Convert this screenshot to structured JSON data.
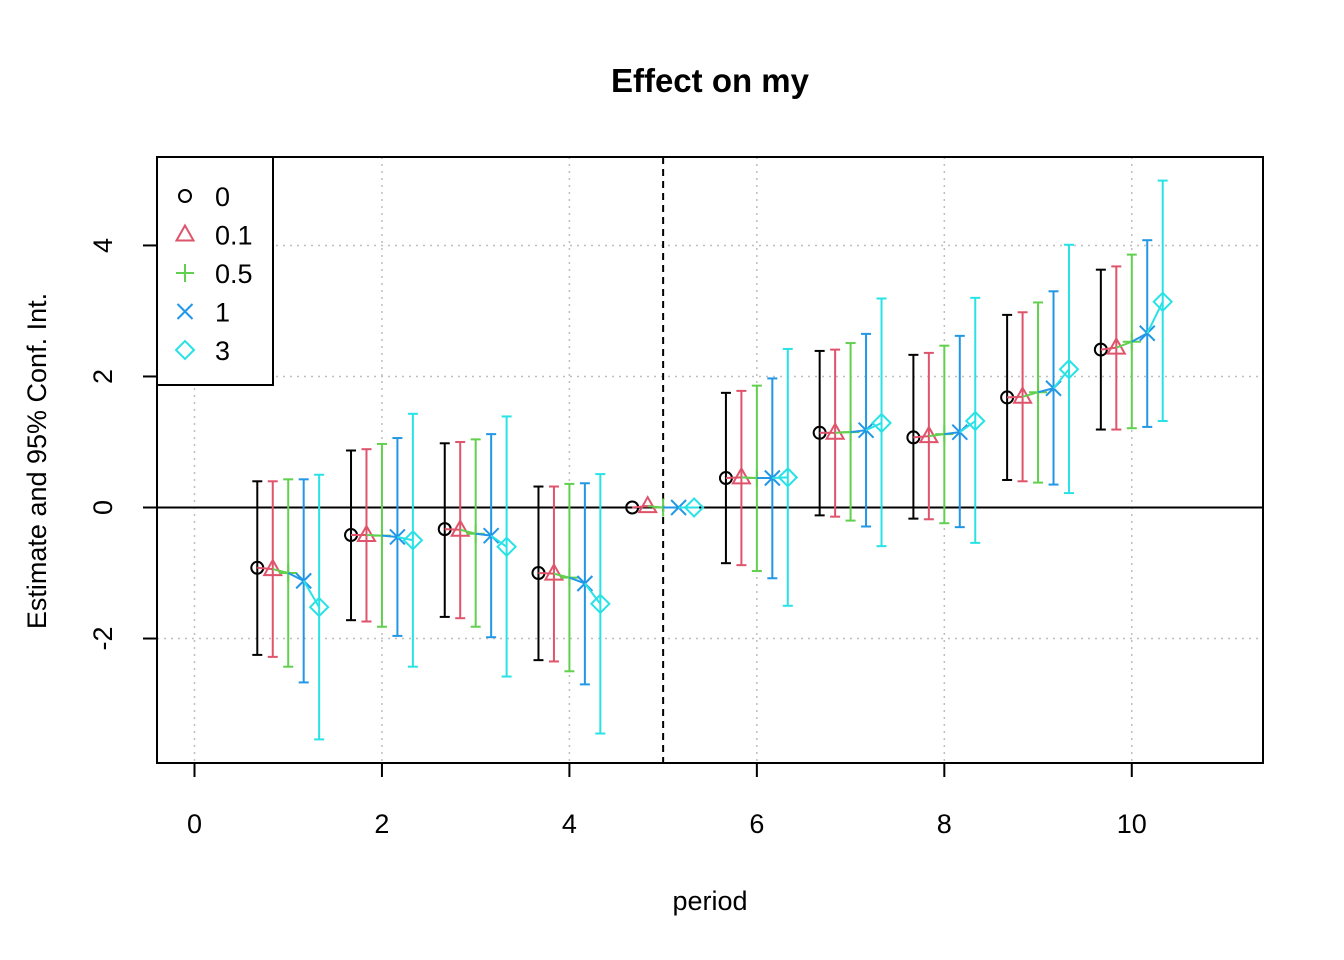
{
  "chart_data": {
    "type": "scatter",
    "title": "Effect on my",
    "xlabel": "period",
    "ylabel": "Estimate and 95% Conf. Int.",
    "xlim": [
      -0.4,
      11.4
    ],
    "ylim": [
      -3.9,
      5.35
    ],
    "x_ticks": [
      "0",
      "2",
      "4",
      "6",
      "8",
      "10"
    ],
    "y_ticks": [
      "-2",
      "0",
      "2",
      "4"
    ],
    "grid": true,
    "reference_lines": {
      "vertical_dashed_x": 5,
      "horizontal_solid_y": 0
    },
    "legend": {
      "placement": "top-left"
    },
    "colors": {
      "series": [
        "#000000",
        "#DF536B",
        "#61D04F",
        "#2297E6",
        "#28E2E5"
      ]
    },
    "series": [
      {
        "name": "0",
        "marker": "circle",
        "periods": [
          1,
          2,
          3,
          4,
          5,
          6,
          7,
          8,
          9,
          10
        ],
        "estimate": [
          -0.92,
          -0.42,
          -0.33,
          -1.0,
          0.0,
          0.45,
          1.14,
          1.07,
          1.68,
          2.41
        ],
        "lower": [
          -2.25,
          -1.72,
          -1.67,
          -2.33,
          0.0,
          -0.85,
          -0.12,
          -0.17,
          0.42,
          1.19
        ],
        "upper": [
          0.4,
          0.87,
          0.98,
          0.32,
          0.0,
          1.75,
          2.39,
          2.33,
          2.94,
          3.63
        ]
      },
      {
        "name": "0.1",
        "marker": "triangle",
        "periods": [
          1,
          2,
          3,
          4,
          5,
          6,
          7,
          8,
          9,
          10
        ],
        "estimate": [
          -0.94,
          -0.42,
          -0.34,
          -1.01,
          0.02,
          0.46,
          1.14,
          1.09,
          1.69,
          2.44
        ],
        "lower": [
          -2.28,
          -1.74,
          -1.69,
          -2.35,
          0.02,
          -0.88,
          -0.14,
          -0.18,
          0.4,
          1.19
        ],
        "upper": [
          0.4,
          0.89,
          1.0,
          0.32,
          0.02,
          1.78,
          2.41,
          2.36,
          2.98,
          3.68
        ]
      },
      {
        "name": "0.5",
        "marker": "plus",
        "periods": [
          1,
          2,
          3,
          4,
          5,
          6,
          7,
          8,
          9,
          10
        ],
        "estimate": [
          -1.0,
          -0.43,
          -0.4,
          -1.07,
          0.0,
          0.45,
          1.15,
          1.12,
          1.76,
          2.53
        ],
        "lower": [
          -2.43,
          -1.82,
          -1.82,
          -2.5,
          0.0,
          -0.97,
          -0.2,
          -0.24,
          0.38,
          1.21
        ],
        "upper": [
          0.43,
          0.97,
          1.04,
          0.36,
          0.0,
          1.86,
          2.51,
          2.47,
          3.13,
          3.86
        ]
      },
      {
        "name": "1",
        "marker": "x",
        "periods": [
          1,
          2,
          3,
          4,
          5,
          6,
          7,
          8,
          9,
          10
        ],
        "estimate": [
          -1.12,
          -0.45,
          -0.43,
          -1.16,
          0.0,
          0.45,
          1.18,
          1.15,
          1.82,
          2.66
        ],
        "lower": [
          -2.67,
          -1.96,
          -1.98,
          -2.7,
          0.0,
          -1.08,
          -0.29,
          -0.3,
          0.35,
          1.23
        ],
        "upper": [
          0.43,
          1.06,
          1.12,
          0.37,
          0.0,
          1.97,
          2.65,
          2.62,
          3.3,
          4.08
        ]
      },
      {
        "name": "3",
        "marker": "diamond",
        "periods": [
          1,
          2,
          3,
          4,
          5,
          6,
          7,
          8,
          9,
          10
        ],
        "estimate": [
          -1.52,
          -0.5,
          -0.6,
          -1.47,
          0.0,
          0.46,
          1.29,
          1.32,
          2.11,
          3.14
        ],
        "lower": [
          -3.54,
          -2.43,
          -2.58,
          -3.45,
          0.0,
          -1.5,
          -0.59,
          -0.54,
          0.22,
          1.32
        ],
        "upper": [
          0.5,
          1.43,
          1.39,
          0.51,
          0.0,
          2.42,
          3.19,
          3.2,
          4.01,
          4.99
        ]
      }
    ]
  }
}
